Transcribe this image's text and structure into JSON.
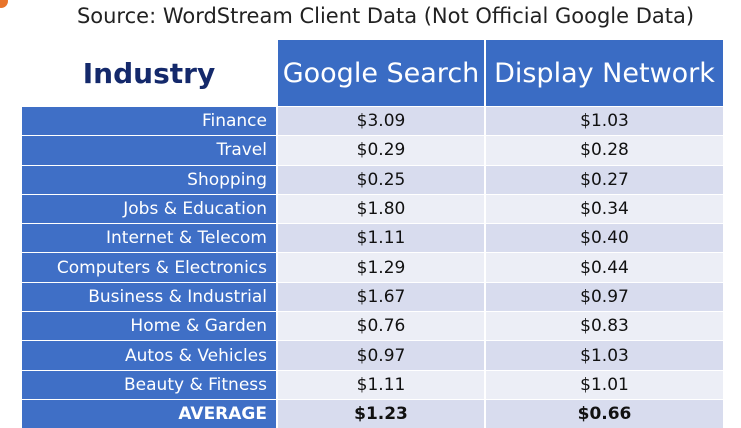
{
  "header": {
    "source": "Source: WordStream Client Data (Not Official Google Data)"
  },
  "table": {
    "columns": [
      "Industry",
      "Google Search",
      "Display Network"
    ],
    "rows": [
      [
        "Finance",
        "$3.09",
        "$1.03"
      ],
      [
        "Travel",
        "$0.29",
        "$0.28"
      ],
      [
        "Shopping",
        "$0.25",
        "$0.27"
      ],
      [
        "Jobs & Education",
        "$1.80",
        "$0.34"
      ],
      [
        "Internet & Telecom",
        "$1.11",
        "$0.40"
      ],
      [
        "Computers & Electronics",
        "$1.29",
        "$0.44"
      ],
      [
        "Business & Industrial",
        "$1.67",
        "$0.97"
      ],
      [
        "Home & Garden",
        "$0.76",
        "$0.83"
      ],
      [
        "Autos & Vehicles",
        "$0.97",
        "$1.03"
      ],
      [
        "Beauty & Fitness",
        "$1.11",
        "$1.01"
      ]
    ],
    "average": [
      "AVERAGE",
      "$1.23",
      "$0.66"
    ]
  }
}
